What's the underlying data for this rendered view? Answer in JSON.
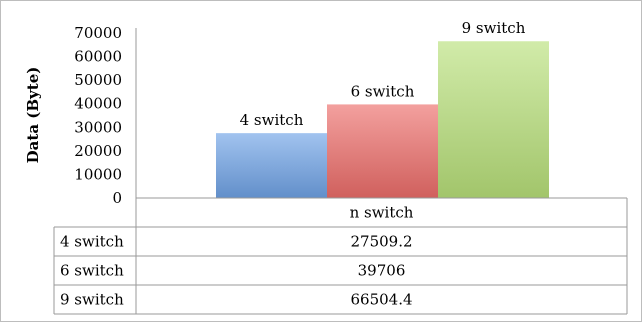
{
  "chart_data": {
    "type": "bar",
    "title": "",
    "xlabel": "",
    "ylabel": "Data (Byte)",
    "ylim": [
      0,
      70000
    ],
    "yticks": [
      0,
      10000,
      20000,
      30000,
      40000,
      50000,
      60000,
      70000
    ],
    "categories": [
      "n switch"
    ],
    "series": [
      {
        "name": "4 switch",
        "values": [
          27509.2
        ],
        "color": "#6fa3e6"
      },
      {
        "name": "6 switch",
        "values": [
          39706
        ],
        "color": "#ec6d6a"
      },
      {
        "name": "9 switch",
        "values": [
          66504.4
        ],
        "color": "#b8e07a"
      }
    ],
    "data_table": true,
    "table_values": [
      "27509.2",
      "39706",
      "66504.4"
    ],
    "grid": false,
    "legend": "none"
  }
}
